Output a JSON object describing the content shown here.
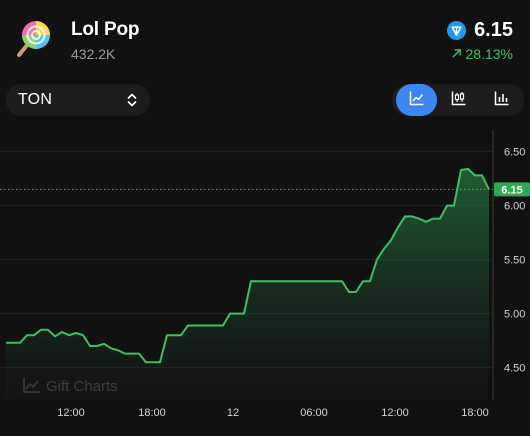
{
  "header": {
    "title": "Lol Pop",
    "subtitle": "432.2K",
    "price": "6.15",
    "change": "28.13%",
    "logo_icon": "lollipop-icon",
    "currency_icon": "ton-diamond-icon",
    "change_icon": "arrow-up-right-icon",
    "colors": {
      "accent": "#3d86f6",
      "positive": "#3fbf63",
      "ton": "#1e9af0"
    }
  },
  "controls": {
    "currency": "TON",
    "currency_icon": "chevron-up-down-icon",
    "chart_types": [
      {
        "icon": "line-chart-icon",
        "active": true
      },
      {
        "icon": "candlestick-chart-icon",
        "active": false
      },
      {
        "icon": "bar-chart-icon",
        "active": false
      }
    ]
  },
  "watermark": "Gift Charts",
  "chart_data": {
    "type": "area",
    "x_ticks": [
      "12:00",
      "18:00",
      "12",
      "06:00",
      "12:00",
      "18:00"
    ],
    "y_ticks": [
      "6.50",
      "6.00",
      "5.50",
      "5.00",
      "4.50"
    ],
    "ylim": [
      4.2,
      6.7
    ],
    "current_value": "6.15",
    "grid": true,
    "color": "#3fbf63",
    "series": [
      {
        "values": [
          4.73,
          4.73,
          4.73,
          4.8,
          4.8,
          4.85,
          4.85,
          4.79,
          4.83,
          4.8,
          4.82,
          4.8,
          4.7,
          4.7,
          4.72,
          4.68,
          4.66,
          4.63,
          4.63,
          4.63,
          4.55,
          4.55,
          4.55,
          4.8,
          4.8,
          4.8,
          4.89,
          4.89,
          4.89,
          4.89,
          4.89,
          4.89,
          5.0,
          5.0,
          5.0,
          5.3,
          5.3,
          5.3,
          5.3,
          5.3,
          5.3,
          5.3,
          5.3,
          5.3,
          5.3,
          5.3,
          5.3,
          5.3,
          5.3,
          5.2,
          5.2,
          5.3,
          5.3,
          5.5,
          5.6,
          5.68,
          5.8,
          5.9,
          5.9,
          5.88,
          5.85,
          5.88,
          5.88,
          6.0,
          6.0,
          6.33,
          6.34,
          6.28,
          6.28,
          6.15
        ]
      }
    ]
  }
}
